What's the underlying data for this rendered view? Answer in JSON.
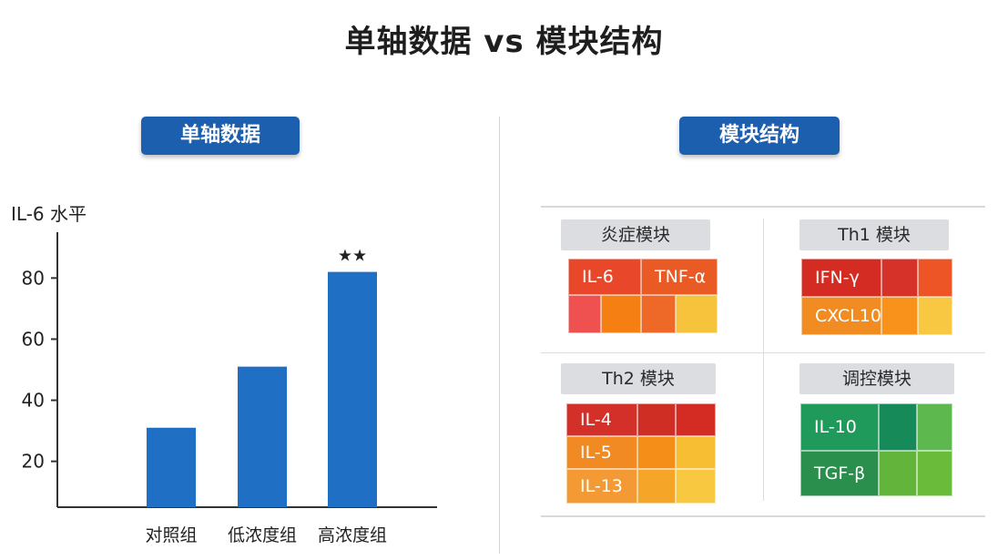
{
  "title": "单轴数据 vs 模块结构",
  "left_panel": {
    "label": "单轴数据"
  },
  "right_panel": {
    "label": "模块结构"
  },
  "chart_data": {
    "type": "bar",
    "ylabel": "IL-6 水平",
    "categories": [
      "对照组",
      "低浓度组",
      "高浓度组"
    ],
    "values": [
      31,
      51,
      82
    ],
    "yticks": [
      20,
      40,
      60,
      80
    ],
    "ylim": [
      5,
      95
    ],
    "annotations": [
      {
        "category": "高浓度组",
        "text": "★★"
      }
    ],
    "bar_color": "#1f6fc4"
  },
  "modules": [
    {
      "name": "炎症模块",
      "cells": [
        {
          "text": "IL-6",
          "color": "#e8472a"
        },
        {
          "text": "TNF-α",
          "color": "#ea5a24"
        },
        {
          "text": "",
          "color": "#ef5050"
        },
        {
          "text": "",
          "color": "#f57f12"
        },
        {
          "text": "",
          "color": "#ee6828"
        },
        {
          "text": "",
          "color": "#f7c23c"
        }
      ]
    },
    {
      "name": "Th1 模块",
      "cells": [
        {
          "text": "IFN-γ",
          "color": "#d42c22"
        },
        {
          "text": "",
          "color": "#d6322a"
        },
        {
          "text": "",
          "color": "#ee5526"
        },
        {
          "text": "CXCL10",
          "color": "#f18c22"
        },
        {
          "text": "",
          "color": "#f8921a"
        },
        {
          "text": "",
          "color": "#f8c843"
        }
      ]
    },
    {
      "name": "Th2 模块",
      "cells": [
        {
          "text": "IL-4",
          "color": "#d4302a"
        },
        {
          "text": "",
          "color": "#cf2e24"
        },
        {
          "text": "",
          "color": "#d42c22"
        },
        {
          "text": "IL-5",
          "color": "#f18a22"
        },
        {
          "text": "",
          "color": "#f48e18"
        },
        {
          "text": "",
          "color": "#f7be34"
        },
        {
          "text": "IL-13",
          "color": "#f49a34"
        },
        {
          "text": "",
          "color": "#f5a628"
        },
        {
          "text": "",
          "color": "#f8c841"
        }
      ]
    },
    {
      "name": "调控模块",
      "cells": [
        {
          "text": "IL-10",
          "color": "#1f9a5a"
        },
        {
          "text": "",
          "color": "#178a5a"
        },
        {
          "text": "",
          "color": "#5db84e"
        },
        {
          "text": "TGF-β",
          "color": "#2a8e4c"
        },
        {
          "text": "",
          "color": "#62b53a"
        },
        {
          "text": "",
          "color": "#6bbb3a"
        }
      ]
    }
  ]
}
